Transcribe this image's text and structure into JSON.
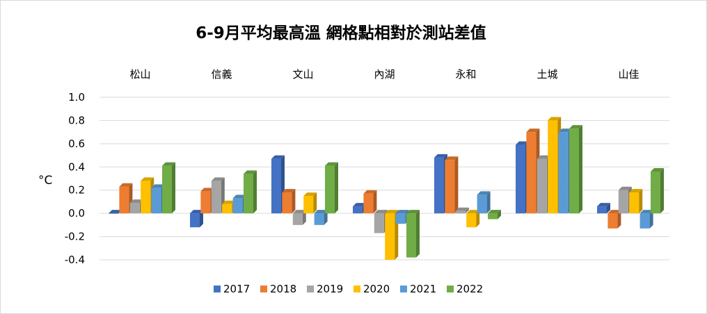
{
  "chart_data": {
    "type": "bar",
    "title": "6-9月平均最高溫 網格點相對於測站差值",
    "ylabel": "°C",
    "xlabel": "",
    "ylim": [
      -0.4,
      1.0
    ],
    "yticks": [
      "1.0",
      "0.8",
      "0.6",
      "0.4",
      "0.2",
      "0.0",
      "-0.2",
      "-0.4"
    ],
    "ytick_values": [
      1.0,
      0.8,
      0.6,
      0.4,
      0.2,
      0.0,
      -0.2,
      -0.4
    ],
    "grid": true,
    "legend_position": "bottom",
    "categories": [
      "松山",
      "信義",
      "文山",
      "內湖",
      "永和",
      "土城",
      "山佳"
    ],
    "series": [
      {
        "name": "2017",
        "color": "#4472c4",
        "values": [
          0.0,
          -0.12,
          0.47,
          0.06,
          0.48,
          0.59,
          0.06
        ]
      },
      {
        "name": "2018",
        "color": "#ed7d31",
        "values": [
          0.23,
          0.19,
          0.18,
          0.17,
          0.46,
          0.7,
          -0.13
        ]
      },
      {
        "name": "2019",
        "color": "#a5a5a5",
        "values": [
          0.09,
          0.28,
          -0.1,
          -0.17,
          0.02,
          0.47,
          0.2
        ]
      },
      {
        "name": "2020",
        "color": "#ffc000",
        "values": [
          0.28,
          0.08,
          0.15,
          -0.4,
          -0.12,
          0.8,
          0.18
        ]
      },
      {
        "name": "2021",
        "color": "#5b9bd5",
        "values": [
          0.22,
          0.13,
          -0.1,
          -0.09,
          0.16,
          0.7,
          -0.13
        ]
      },
      {
        "name": "2022",
        "color": "#70ad47",
        "values": [
          0.41,
          0.34,
          0.41,
          -0.38,
          -0.05,
          0.73,
          0.36
        ]
      }
    ]
  }
}
